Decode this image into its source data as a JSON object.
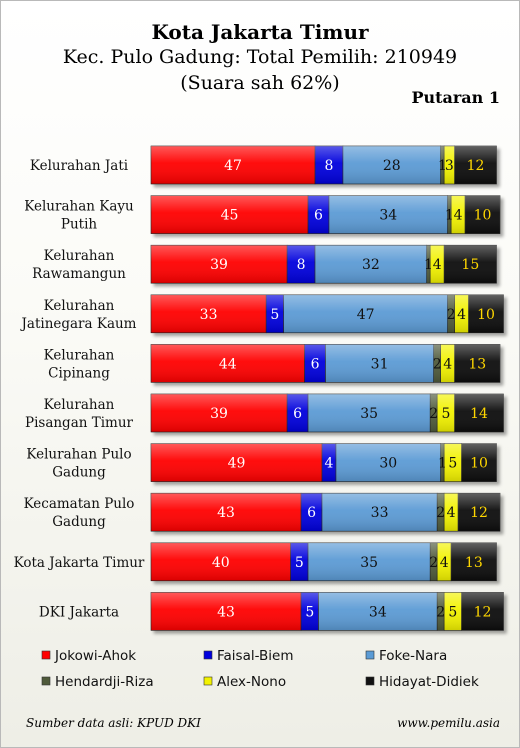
{
  "chart_data": {
    "type": "bar",
    "stacked": true,
    "orientation": "horizontal",
    "title": "Kota Jakarta Timur",
    "subtitle": "Kec. Pulo Gadung: Total Pemilih: 210949",
    "subtitle2": "(Suara sah 62%)",
    "round_label": "Putaran 1",
    "categories": [
      [
        "Kelurahan Jati"
      ],
      [
        "Kelurahan Kayu",
        "Putih"
      ],
      [
        "Kelurahan",
        "Rawamangun"
      ],
      [
        "Kelurahan",
        "Jatinegara Kaum"
      ],
      [
        "Kelurahan",
        "Cipinang"
      ],
      [
        "Kelurahan",
        "Pisangan Timur"
      ],
      [
        "Kelurahan Pulo",
        "Gadung"
      ],
      [
        "Kecamatan Pulo",
        "Gadung"
      ],
      [
        "Kota Jakarta Timur"
      ],
      [
        "DKI Jakarta"
      ]
    ],
    "series": [
      {
        "name": "Jokowi-Ahok",
        "color": "#ff0000",
        "text_color": "#ffffff",
        "values": [
          47,
          45,
          39,
          33,
          44,
          39,
          49,
          43,
          40,
          43
        ]
      },
      {
        "name": "Faisal-Biem",
        "color": "#0000dd",
        "text_color": "#ffffff",
        "values": [
          8,
          6,
          8,
          5,
          6,
          6,
          4,
          6,
          5,
          5
        ]
      },
      {
        "name": "Foke-Nara",
        "color": "#5b9bd5",
        "text_color": "#111111",
        "values": [
          28,
          34,
          32,
          47,
          31,
          35,
          30,
          33,
          35,
          34
        ]
      },
      {
        "name": "Hendardji-Riza",
        "color": "#4f5a3a",
        "text_color": "#111111",
        "values": [
          1,
          1,
          1,
          2,
          2,
          2,
          1,
          2,
          2,
          2
        ]
      },
      {
        "name": "Alex-Nono",
        "color": "#f2f200",
        "text_color": "#111111",
        "values": [
          3,
          4,
          4,
          4,
          4,
          5,
          5,
          4,
          4,
          5
        ]
      },
      {
        "name": "Hidayat-Didiek",
        "color": "#111111",
        "text_color": "#ffd700",
        "values": [
          12,
          10,
          15,
          10,
          13,
          14,
          10,
          12,
          13,
          12
        ]
      }
    ],
    "xlim": [
      0,
      100
    ],
    "legend_position": "bottom"
  },
  "footer": {
    "source": "Sumber data asli: KPUD DKI",
    "site": "www.pemilu.asia"
  }
}
